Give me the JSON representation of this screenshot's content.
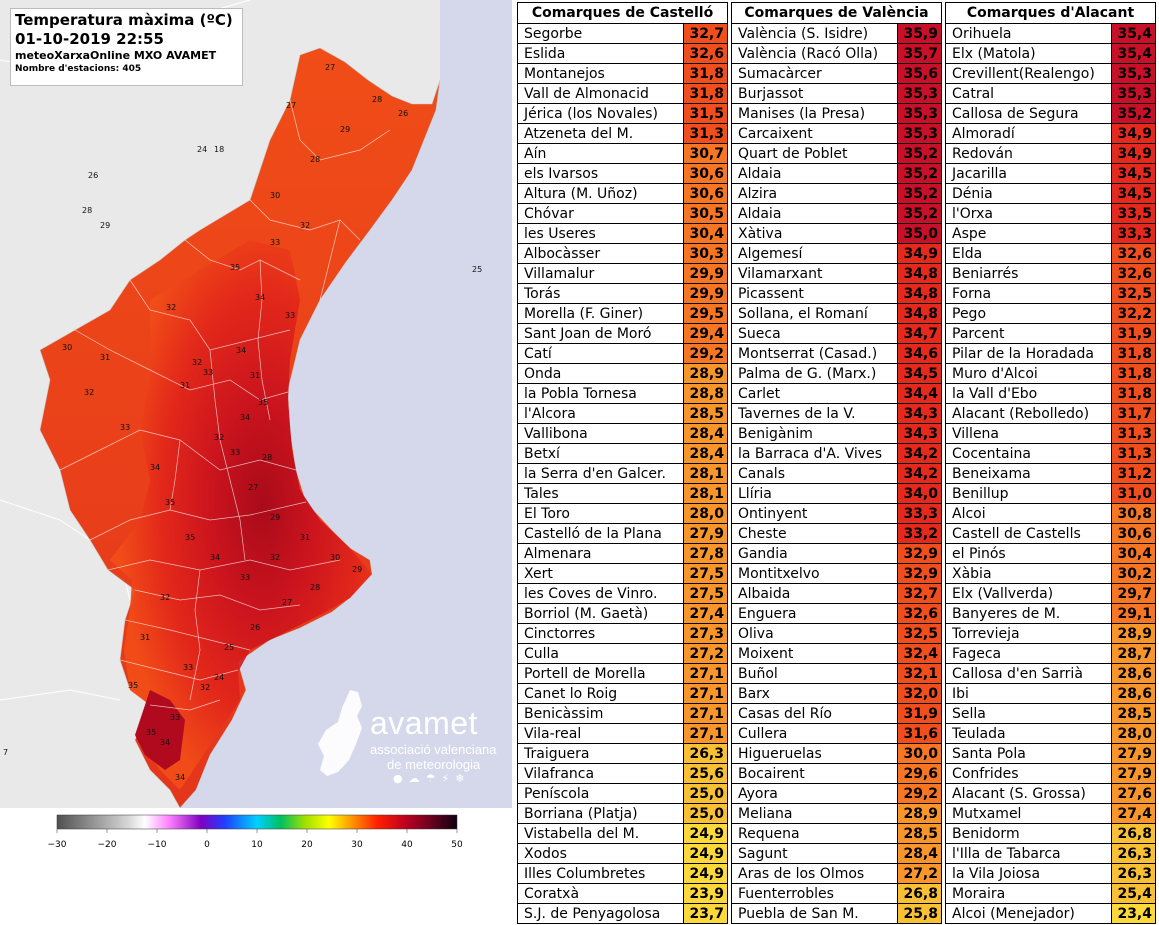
{
  "title": {
    "line1": "Temperatura màxima (ºC)",
    "line2": "01-10-2019 22:55",
    "line3": "meteoXarxaOnline MXO AVAMET",
    "line4": "Nombre d'estacions: 405"
  },
  "colors": {
    "sea": "#d5d8ea",
    "land_outside": "#e9e9e9",
    "hot_dark": "#b8081b",
    "hot": "#e52515",
    "warm": "#f45a1c",
    "val_35": "#c81028",
    "val_33": "#e52a1d",
    "val_31": "#f04e1d",
    "val_29": "#f67623",
    "val_27": "#f8962c",
    "val_25": "#f8c035",
    "val_23": "#fbd93b"
  },
  "legend": {
    "ticks": [
      "−30",
      "−20",
      "−10",
      "0",
      "10",
      "20",
      "30",
      "40",
      "50"
    ]
  },
  "logo": {
    "name": "avamet",
    "sub1": "associació valenciana",
    "sub2": "de meteorologia",
    "icons": [
      "sun-icon",
      "cloud-icon",
      "rain-icon",
      "storm-icon",
      "snow-icon"
    ]
  },
  "map": {
    "marks_outside": [
      "24",
      "18",
      "26",
      "28",
      "29",
      "25",
      "7"
    ],
    "marks_inside": [
      "27",
      "28",
      "26",
      "27",
      "29",
      "28",
      "30",
      "32",
      "33",
      "35",
      "34",
      "31",
      "32",
      "33",
      "35",
      "34",
      "31",
      "32",
      "33",
      "28",
      "27",
      "29",
      "30",
      "31",
      "32",
      "33",
      "34",
      "35",
      "35",
      "34",
      "33",
      "32",
      "31",
      "30",
      "29",
      "28",
      "27",
      "26",
      "25",
      "24",
      "32",
      "33",
      "34",
      "35",
      "34",
      "33",
      "32",
      "31",
      "35",
      "34",
      "33",
      "32"
    ]
  },
  "tables": [
    {
      "header": "Comarques de Castelló",
      "rows": [
        [
          "Segorbe",
          "32,7"
        ],
        [
          "Eslida",
          "32,6"
        ],
        [
          "Montanejos",
          "31,8"
        ],
        [
          "Vall de Almonacid",
          "31,8"
        ],
        [
          "Jérica (los Novales)",
          "31,5"
        ],
        [
          "Atzeneta del M.",
          "31,3"
        ],
        [
          "Aín",
          "30,7"
        ],
        [
          "els Ivarsos",
          "30,6"
        ],
        [
          "Altura (M. Uñoz)",
          "30,6"
        ],
        [
          "Chóvar",
          "30,5"
        ],
        [
          "les Useres",
          "30,4"
        ],
        [
          "Albocàsser",
          "30,3"
        ],
        [
          "Villamalur",
          "29,9"
        ],
        [
          "Torás",
          "29,9"
        ],
        [
          "Morella (F. Giner)",
          "29,5"
        ],
        [
          "Sant Joan de Moró",
          "29,4"
        ],
        [
          "Catí",
          "29,2"
        ],
        [
          "Onda",
          "28,9"
        ],
        [
          "la Pobla Tornesa",
          "28,8"
        ],
        [
          "l'Alcora",
          "28,5"
        ],
        [
          "Vallibona",
          "28,4"
        ],
        [
          "Betxí",
          "28,4"
        ],
        [
          "la Serra d'en Galcer.",
          "28,1"
        ],
        [
          "Tales",
          "28,1"
        ],
        [
          "El Toro",
          "28,0"
        ],
        [
          "Castelló de la Plana",
          "27,9"
        ],
        [
          "Almenara",
          "27,8"
        ],
        [
          "Xert",
          "27,5"
        ],
        [
          "les Coves de Vinro.",
          "27,5"
        ],
        [
          "Borriol (M. Gaetà)",
          "27,4"
        ],
        [
          "Cinctorres",
          "27,3"
        ],
        [
          "Culla",
          "27,2"
        ],
        [
          "Portell de Morella",
          "27,1"
        ],
        [
          "Canet lo Roig",
          "27,1"
        ],
        [
          "Benicàssim",
          "27,1"
        ],
        [
          "Vila-real",
          "27,1"
        ],
        [
          "Traiguera",
          "26,3"
        ],
        [
          "Vilafranca",
          "25,6"
        ],
        [
          "Peníscola",
          "25,0"
        ],
        [
          "Borriana (Platja)",
          "25,0"
        ],
        [
          "Vistabella del M.",
          "24,9"
        ],
        [
          "Xodos",
          "24,9"
        ],
        [
          "Illes Columbretes",
          "24,9"
        ],
        [
          "Coratxà",
          "23,9"
        ],
        [
          "S.J. de Penyagolosa",
          "23,7"
        ]
      ]
    },
    {
      "header": "Comarques de València",
      "rows": [
        [
          "València (S. Isidre)",
          "35,9"
        ],
        [
          "València (Racó Olla)",
          "35,7"
        ],
        [
          "Sumacàrcer",
          "35,6"
        ],
        [
          "Burjassot",
          "35,3"
        ],
        [
          "Manises (la Presa)",
          "35,3"
        ],
        [
          "Carcaixent",
          "35,3"
        ],
        [
          "Quart de Poblet",
          "35,2"
        ],
        [
          "Aldaia",
          "35,2"
        ],
        [
          "Alzira",
          "35,2"
        ],
        [
          "Aldaia",
          "35,2"
        ],
        [
          "Xàtiva",
          "35,0"
        ],
        [
          "Algemesí",
          "34,9"
        ],
        [
          "Vilamarxant",
          "34,8"
        ],
        [
          "Picassent",
          "34,8"
        ],
        [
          "Sollana, el Romaní",
          "34,8"
        ],
        [
          "Sueca",
          "34,7"
        ],
        [
          "Montserrat (Casad.)",
          "34,6"
        ],
        [
          "Palma de G. (Marx.)",
          "34,5"
        ],
        [
          "Carlet",
          "34,4"
        ],
        [
          "Tavernes de la V.",
          "34,3"
        ],
        [
          "Benigànim",
          "34,3"
        ],
        [
          "la Barraca d'A. Vives",
          "34,2"
        ],
        [
          "Canals",
          "34,2"
        ],
        [
          "Llíria",
          "34,0"
        ],
        [
          "Ontinyent",
          "33,3"
        ],
        [
          "Cheste",
          "33,2"
        ],
        [
          "Gandia",
          "32,9"
        ],
        [
          "Montitxelvo",
          "32,9"
        ],
        [
          "Albaida",
          "32,7"
        ],
        [
          "Enguera",
          "32,6"
        ],
        [
          "Oliva",
          "32,5"
        ],
        [
          "Moixent",
          "32,4"
        ],
        [
          "Buñol",
          "32,1"
        ],
        [
          "Barx",
          "32,0"
        ],
        [
          "Casas del Río",
          "31,9"
        ],
        [
          "Cullera",
          "31,6"
        ],
        [
          "Higueruelas",
          "30,0"
        ],
        [
          "Bocairent",
          "29,6"
        ],
        [
          "Ayora",
          "29,2"
        ],
        [
          "Meliana",
          "28,9"
        ],
        [
          "Requena",
          "28,5"
        ],
        [
          "Sagunt",
          "28,4"
        ],
        [
          "Aras de los Olmos",
          "27,2"
        ],
        [
          "Fuenterrobles",
          "26,8"
        ],
        [
          "Puebla de San M.",
          "25,8"
        ]
      ]
    },
    {
      "header": "Comarques d'Alacant",
      "rows": [
        [
          "Orihuela",
          "35,4"
        ],
        [
          "Elx (Matola)",
          "35,4"
        ],
        [
          "Crevillent(Realengo)",
          "35,3"
        ],
        [
          "Catral",
          "35,3"
        ],
        [
          "Callosa de Segura",
          "35,2"
        ],
        [
          "Almoradí",
          "34,9"
        ],
        [
          "Redován",
          "34,9"
        ],
        [
          "Jacarilla",
          "34,5"
        ],
        [
          "Dénia",
          "34,5"
        ],
        [
          "l'Orxa",
          "33,5"
        ],
        [
          "Aspe",
          "33,3"
        ],
        [
          "Elda",
          "32,6"
        ],
        [
          "Beniarrés",
          "32,6"
        ],
        [
          "Forna",
          "32,5"
        ],
        [
          "Pego",
          "32,2"
        ],
        [
          "Parcent",
          "31,9"
        ],
        [
          "Pilar de la Horadada",
          "31,8"
        ],
        [
          "Muro d'Alcoi",
          "31,8"
        ],
        [
          "la Vall d'Ebo",
          "31,8"
        ],
        [
          "Alacant (Rebolledo)",
          "31,7"
        ],
        [
          "Villena",
          "31,3"
        ],
        [
          "Cocentaina",
          "31,3"
        ],
        [
          "Beneixama",
          "31,2"
        ],
        [
          "Benillup",
          "31,0"
        ],
        [
          "Alcoi",
          "30,8"
        ],
        [
          "Castell de Castells",
          "30,6"
        ],
        [
          "el Pinós",
          "30,4"
        ],
        [
          "Xàbia",
          "30,2"
        ],
        [
          "Elx (Vallverda)",
          "29,7"
        ],
        [
          "Banyeres de M.",
          "29,1"
        ],
        [
          "Torrevieja",
          "28,9"
        ],
        [
          "Fageca",
          "28,7"
        ],
        [
          "Callosa d'en Sarrià",
          "28,6"
        ],
        [
          "Ibi",
          "28,6"
        ],
        [
          "Sella",
          "28,5"
        ],
        [
          "Teulada",
          "28,0"
        ],
        [
          "Santa Pola",
          "27,9"
        ],
        [
          "Confrides",
          "27,9"
        ],
        [
          "Alacant (S. Grossa)",
          "27,6"
        ],
        [
          "Mutxamel",
          "27,4"
        ],
        [
          "Benidorm",
          "26,8"
        ],
        [
          "l'Illa de Tabarca",
          "26,3"
        ],
        [
          "la Vila Joiosa",
          "26,3"
        ],
        [
          "Moraira",
          "25,4"
        ],
        [
          "Alcoi (Menejador)",
          "23,4"
        ]
      ]
    }
  ]
}
